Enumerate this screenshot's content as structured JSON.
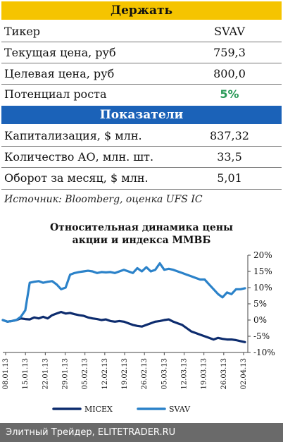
{
  "hold_header": "Держать",
  "hold_rows": [
    {
      "label": "Тикер",
      "value": "SVAV"
    },
    {
      "label": "Текущая цена, руб",
      "value": "759,3"
    },
    {
      "label": "Целевая цена, руб",
      "value": "800,0"
    },
    {
      "label": "Потенциал роста",
      "value": "5%"
    }
  ],
  "indicators_header": "Показатели",
  "indicator_rows": [
    {
      "label": "Капитализация, $ млн.",
      "value": "837,32"
    },
    {
      "label": "Количество АО, млн. шт.",
      "value": "33,5"
    },
    {
      "label": "Оборот за месяц, $ млн.",
      "value": "5,01"
    }
  ],
  "source": "Источник: Bloomberg, оценка UFS IC",
  "footer": "Элитный Трейдер, ELITETRADER.RU",
  "colors": {
    "micex": "#0d2c6e",
    "svav": "#2b82c9",
    "yellow": "#f5c400",
    "blue": "#1b62b8",
    "green": "#2a9a58"
  },
  "chart_data": {
    "type": "line",
    "title_line1": "Относительная динамика цены",
    "title_line2": "акции и индекса ММВБ",
    "x_tick_labels": [
      "08.01.13",
      "15.01.13",
      "22.01.13",
      "29.01.13",
      "05.02.13",
      "12.02.13",
      "19.02.13",
      "26.02.13",
      "05.03.13",
      "12.03.13",
      "19.03.13",
      "26.03.13",
      "02.04.13"
    ],
    "y_tick_labels": [
      "20%",
      "15%",
      "10%",
      "5%",
      "0%",
      "-5%",
      "-10%"
    ],
    "ylim": [
      -10,
      20
    ],
    "legend_position": "bottom",
    "series": [
      {
        "name": "MICEX",
        "values": [
          0,
          -0.5,
          -0.3,
          0,
          0.5,
          0.3,
          0.2,
          0.8,
          0.5,
          1,
          0.5,
          1.5,
          2,
          2.5,
          2,
          2.2,
          1.8,
          1.5,
          1.3,
          0.8,
          0.5,
          0.3,
          0,
          0.2,
          -0.3,
          -0.5,
          -0.3,
          -0.5,
          -1,
          -1.5,
          -1.8,
          -2,
          -1.5,
          -1,
          -0.5,
          -0.3,
          0,
          0.2,
          -0.5,
          -1,
          -1.5,
          -2.5,
          -3.5,
          -4,
          -4.5,
          -5,
          -5.5,
          -6,
          -5.5,
          -5.8,
          -6,
          -6,
          -6.2,
          -6.5,
          -6.8
        ]
      },
      {
        "name": "SVAV",
        "values": [
          0,
          -0.5,
          -0.3,
          0,
          1,
          3,
          11.5,
          11.8,
          12,
          11.5,
          11.8,
          12,
          11,
          9.5,
          10,
          14,
          14.5,
          14.8,
          15,
          15.2,
          15,
          14.5,
          14.8,
          14.7,
          14.8,
          14.5,
          15,
          15.5,
          15,
          14.5,
          16,
          15,
          16.3,
          15,
          15.5,
          17.5,
          15.5,
          15.8,
          15.5,
          15,
          14.5,
          14,
          13.5,
          13,
          12.5,
          12.5,
          11,
          9.5,
          8,
          7,
          8.5,
          8,
          9.5,
          9.5,
          9.8
        ]
      }
    ]
  }
}
